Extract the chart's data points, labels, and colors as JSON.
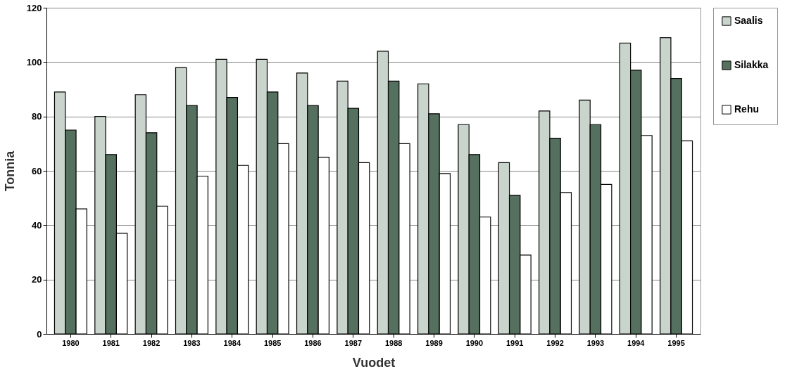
{
  "chart_data": {
    "type": "bar",
    "xlabel": "Vuodet",
    "ylabel": "Tonnia",
    "categories": [
      "1980",
      "1981",
      "1982",
      "1983",
      "1984",
      "1985",
      "1986",
      "1987",
      "1988",
      "1989",
      "1990",
      "1991",
      "1992",
      "1993",
      "1994",
      "1995"
    ],
    "series": [
      {
        "name": "Saalis",
        "color": "#c8d4cc",
        "values": [
          89,
          80,
          88,
          98,
          101,
          101,
          96,
          93,
          104,
          92,
          77,
          63,
          82,
          86,
          107,
          109
        ]
      },
      {
        "name": "Silakka",
        "color": "#55705f",
        "values": [
          75,
          66,
          74,
          84,
          87,
          89,
          84,
          83,
          93,
          81,
          66,
          51,
          72,
          77,
          97,
          94
        ]
      },
      {
        "name": "Rehu",
        "color": "#ffffff",
        "values": [
          46,
          37,
          47,
          58,
          62,
          70,
          65,
          63,
          70,
          59,
          43,
          29,
          52,
          55,
          73,
          71
        ]
      }
    ],
    "ylim": [
      0,
      120
    ],
    "yticks": [
      0,
      20,
      40,
      60,
      80,
      100,
      120
    ],
    "grid": "y",
    "legend": "right"
  }
}
